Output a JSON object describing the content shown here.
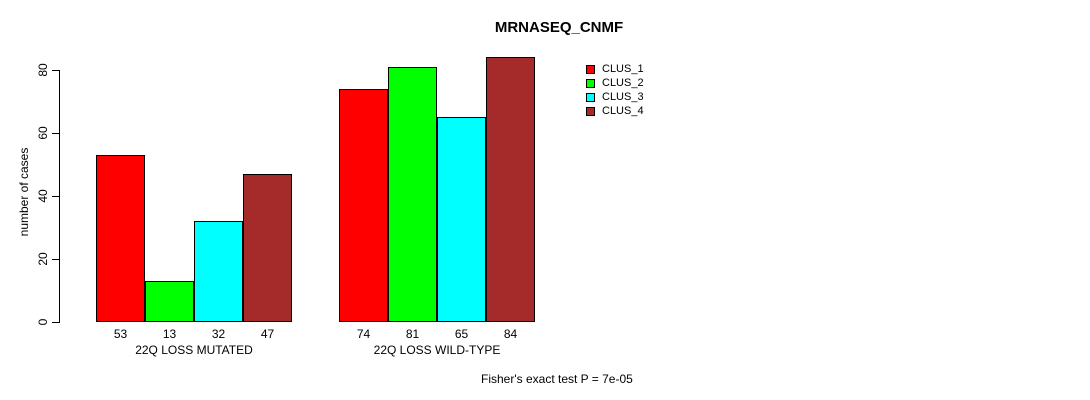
{
  "chart_data": {
    "type": "bar",
    "title": "MRNASEQ_CNMF",
    "ylabel": "number of cases",
    "ylim": [
      0,
      80
    ],
    "yticks": [
      0,
      20,
      40,
      60,
      80
    ],
    "categories": [
      "22Q LOSS MUTATED",
      "22Q LOSS WILD-TYPE"
    ],
    "series": [
      {
        "name": "CLUS_1",
        "color": "#ff0000",
        "values": [
          53,
          74
        ]
      },
      {
        "name": "CLUS_2",
        "color": "#00ff00",
        "values": [
          13,
          81
        ]
      },
      {
        "name": "CLUS_3",
        "color": "#00ffff",
        "values": [
          32,
          65
        ]
      },
      {
        "name": "CLUS_4",
        "color": "#a52a2a",
        "values": [
          47,
          84
        ]
      }
    ],
    "value_labels": [
      [
        53,
        13,
        32,
        47
      ],
      [
        74,
        81,
        65,
        84
      ]
    ],
    "legend_position": "top-right",
    "grid": false,
    "annotation": "Fisher's exact test P = 7e-05"
  }
}
